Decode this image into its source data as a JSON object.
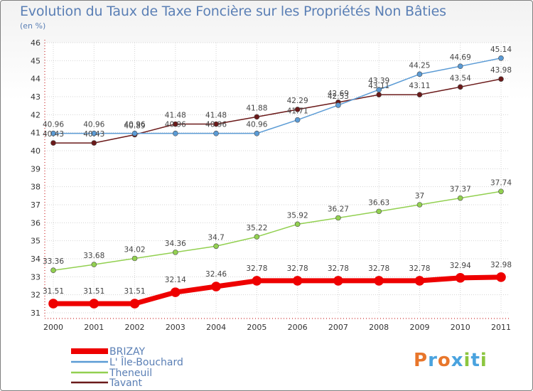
{
  "title": "Evolution du Taux de Taxe Foncière sur les Propriétés Non Bâties",
  "subtitle": "(en %)",
  "logo": {
    "text": "Proxiti",
    "colors": [
      "#e8762b",
      "#4aa3df",
      "#e8762b",
      "#4aa3df",
      "#8cc63f",
      "#4aa3df",
      "#8cc63f"
    ]
  },
  "chart_data": {
    "type": "line",
    "x": [
      "2000",
      "2001",
      "2002",
      "2003",
      "2004",
      "2005",
      "2006",
      "2007",
      "2008",
      "2009",
      "2010",
      "2011"
    ],
    "ylim": [
      31,
      46
    ],
    "yticks": [
      "31",
      "32",
      "33",
      "34",
      "35",
      "36",
      "37",
      "38",
      "39",
      "40",
      "41",
      "42",
      "43",
      "44",
      "45",
      "46"
    ],
    "grid": true,
    "legend_position": "bottom-left",
    "series": [
      {
        "name": "Tavant",
        "color": "#6b1a1a",
        "line_width": 1.5,
        "marker_radius": 3.5,
        "values": [
          40.43,
          40.43,
          40.89,
          41.48,
          41.48,
          41.88,
          42.29,
          42.69,
          43.11,
          43.11,
          43.54,
          43.98
        ],
        "labels": [
          "40.43",
          "40.43",
          "40.89",
          "41.48",
          "41.48",
          "41.88",
          "42.29",
          "42.69",
          "43.11",
          "43.11",
          "43.54",
          "43.98"
        ]
      },
      {
        "name": "L' Île-Bouchard",
        "color": "#5b9bd5",
        "line_width": 1.5,
        "marker_radius": 3.5,
        "values": [
          40.96,
          40.96,
          40.96,
          40.96,
          40.96,
          40.96,
          41.71,
          42.53,
          43.39,
          44.25,
          44.69,
          45.14
        ],
        "labels": [
          "40.96",
          "40.96",
          "40.96",
          "40.96",
          "40.96",
          "40.96",
          "41.71",
          "42.53",
          "43.39",
          "44.25",
          "44.69",
          "45.14"
        ]
      },
      {
        "name": "Theneuil",
        "color": "#92d050",
        "line_width": 1.5,
        "marker_radius": 3.5,
        "values": [
          33.36,
          33.68,
          34.02,
          34.36,
          34.7,
          35.22,
          35.92,
          36.27,
          36.63,
          37,
          37.37,
          37.74
        ],
        "labels": [
          "33.36",
          "33.68",
          "34.02",
          "34.36",
          "34.7",
          "35.22",
          "35.92",
          "36.27",
          "36.63",
          "37",
          "37.37",
          "37.74"
        ]
      },
      {
        "name": "BRIZAY",
        "color": "#ee0000",
        "line_width": 7,
        "marker_radius": 6.5,
        "values": [
          31.51,
          31.51,
          31.51,
          32.14,
          32.46,
          32.78,
          32.78,
          32.78,
          32.78,
          32.78,
          32.94,
          32.98
        ],
        "labels": [
          "31.51",
          "31.51",
          "31.51",
          "32.14",
          "32.46",
          "32.78",
          "32.78",
          "32.78",
          "32.78",
          "32.78",
          "32.94",
          "32.98"
        ]
      }
    ],
    "legend": [
      "BRIZAY",
      "L' Île-Bouchard",
      "Theneuil",
      "Tavant"
    ]
  }
}
